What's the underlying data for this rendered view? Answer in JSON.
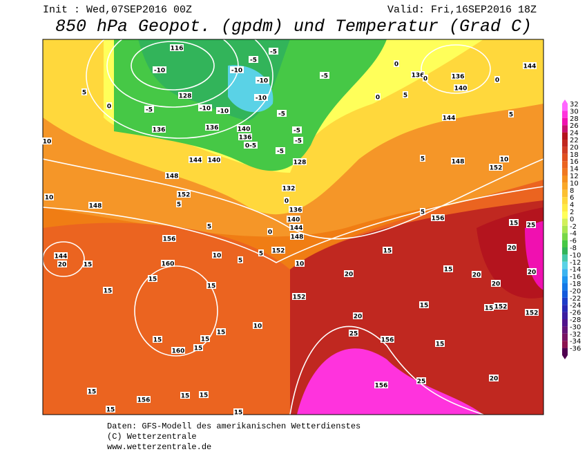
{
  "header": {
    "init": "Init : Wed,07SEP2016 00Z",
    "valid": "Valid: Fri,16SEP2016 18Z",
    "title": "850 hPa Geopot. (gpdm) und Temperatur (Grad C)"
  },
  "footer": [
    "Daten: GFS-Modell des amerikanischen Wetterdienstes",
    "(C) Wetterzentrale",
    "www.wetterzentrale.de"
  ],
  "colorbar": {
    "ticks": [
      32,
      30,
      28,
      26,
      24,
      22,
      20,
      18,
      16,
      14,
      12,
      10,
      8,
      6,
      4,
      2,
      0,
      -2,
      -4,
      -6,
      -8,
      -10,
      -12,
      -14,
      -16,
      -18,
      -20,
      -22,
      -24,
      -26,
      -28,
      -30,
      -32,
      -34,
      -36
    ],
    "colors": [
      "#ff66ff",
      "#ff33dd",
      "#f010b0",
      "#c8106e",
      "#b4141e",
      "#c02820",
      "#d03c24",
      "#e05020",
      "#eb6420",
      "#f07820",
      "#f5901e",
      "#faa828",
      "#fcc032",
      "#ffd83c",
      "#ffec46",
      "#ffff5a",
      "#d2f05a",
      "#aae650",
      "#78d746",
      "#46c846",
      "#32b45a",
      "#46c8aa",
      "#5ad2e6",
      "#3cb4f0",
      "#1e96f0",
      "#1478e6",
      "#145adc",
      "#1e3cc8",
      "#2828b4",
      "#3c1ea0",
      "#50148c",
      "#641478",
      "#781464",
      "#8c1450",
      "#500050"
    ]
  },
  "contour_labels": [
    "116",
    "-10",
    "128",
    "136",
    "136",
    "140",
    "136",
    "144",
    "140",
    "148",
    "152",
    "156",
    "160",
    "160",
    "156",
    "144",
    "20",
    "15",
    "148",
    "132",
    "136",
    "140",
    "144",
    "148",
    "152",
    "-5",
    "128",
    "136",
    "140",
    "136",
    "144",
    "144",
    "148",
    "152",
    "156",
    "152",
    "156",
    "156",
    "152",
    "152",
    "10",
    "10",
    "10",
    "15",
    "15",
    "15",
    "15",
    "15",
    "15",
    "15",
    "20",
    "20",
    "25",
    "25",
    "20",
    "20",
    "20",
    "20",
    "20",
    "25",
    "15",
    "15",
    "15",
    "15",
    "15",
    "15",
    "5",
    "10",
    "5",
    "5",
    "0",
    "5",
    "10",
    "10",
    "0",
    "0",
    "5",
    "5",
    "0",
    "0",
    "0",
    "0",
    "5",
    "5",
    "5",
    "-10",
    "-10",
    "-10",
    "-10",
    "-10",
    "-5",
    "-5",
    "-5",
    "-5",
    "0-5",
    "-5",
    "-5",
    "-5",
    "15",
    "15",
    "15",
    "15",
    "15"
  ]
}
